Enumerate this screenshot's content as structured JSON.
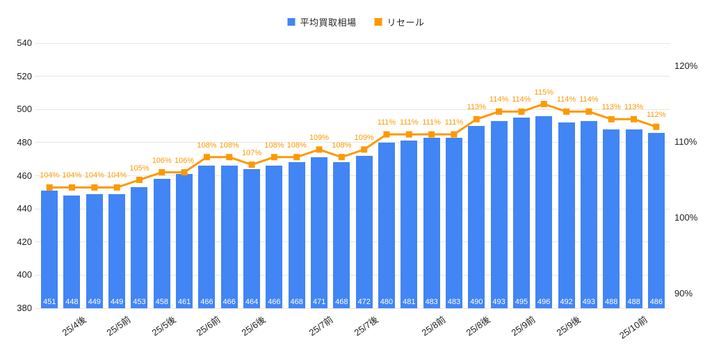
{
  "chart_data": {
    "type": "combo-bar-line",
    "title": "",
    "legend_position": "top",
    "grid": true,
    "series": [
      {
        "name": "平均買取相場",
        "type": "bar",
        "axis": "left",
        "color": "#4285F4",
        "value_label_color": "#ffffff",
        "values": [
          451,
          448,
          449,
          449,
          453,
          458,
          461,
          466,
          466,
          464,
          466,
          468,
          471,
          468,
          472,
          480,
          481,
          483,
          483,
          490,
          493,
          495,
          496,
          492,
          493,
          488,
          488,
          486
        ]
      },
      {
        "name": "リセール",
        "type": "line",
        "axis": "right",
        "color": "#FF9800",
        "unit": "%",
        "values": [
          104,
          104,
          104,
          104,
          105,
          106,
          106,
          108,
          108,
          107,
          108,
          108,
          109,
          108,
          109,
          111,
          111,
          111,
          111,
          113,
          114,
          114,
          115,
          114,
          114,
          113,
          113,
          112
        ]
      }
    ],
    "left_axis": {
      "min": 380,
      "max": 540,
      "step": 20,
      "tick_labels": [
        "380",
        "400",
        "420",
        "440",
        "460",
        "480",
        "500",
        "520",
        "540"
      ]
    },
    "right_axis": {
      "ticks": [
        90,
        100,
        110,
        120
      ],
      "unit": "%",
      "tick_labels": [
        "90%",
        "100%",
        "110%",
        "120%"
      ]
    },
    "x_axis": {
      "labels": [
        "25/4後",
        "25/5前",
        "25/5後",
        "25/6前",
        "25/6後",
        "25/7前",
        "25/7後",
        "25/8前",
        "25/8後",
        "25/9前",
        "25/9後",
        "25/10前"
      ],
      "label_slots": [
        3,
        5,
        7,
        9,
        11,
        14,
        16,
        19,
        21,
        23,
        25,
        28
      ]
    }
  },
  "colors": {
    "background": "#ffffff",
    "grid": "#e6e6e6",
    "axis_text": "#212121",
    "bar": "#4285F4",
    "line": "#FF9800"
  }
}
